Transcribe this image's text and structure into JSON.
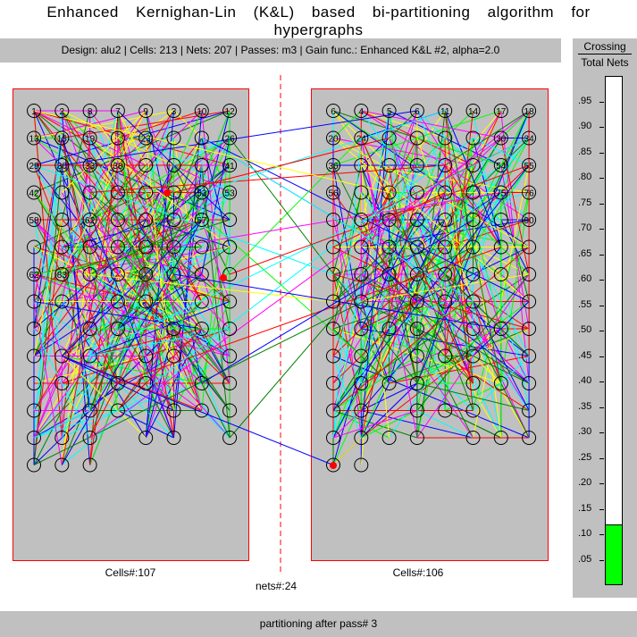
{
  "title": "Enhanced Kernighan-Lin (K&L) based bi-partitioning algorithm for hypergraphs",
  "info": {
    "text": "Design: alu2  |  Cells: 213  |  Nets: 207  |  Passes: m3  |  Gain func.: Enhanced K&L #2, alpha=2.0"
  },
  "gauge": {
    "header_top": "Crossing",
    "header_bottom": "Total Nets",
    "value": 0.115,
    "fill_color": "#00ff00",
    "ticks": [
      ".95",
      ".90",
      ".85",
      ".80",
      ".75",
      ".70",
      ".65",
      ".60",
      ".55",
      ".50",
      ".45",
      ".40",
      ".35",
      ".30",
      ".25",
      ".20",
      ".15",
      ".10",
      ".05"
    ]
  },
  "left_partition": {
    "label": "Cells#:107",
    "grid_labels": [
      "1",
      "2",
      "8",
      "7",
      "9",
      "3",
      "10",
      "12",
      "13",
      "15",
      "19",
      "",
      "23",
      "",
      "",
      "26",
      "29",
      "30",
      "33",
      "38",
      "",
      "",
      "",
      "41",
      "42",
      "",
      "",
      "",
      "",
      "",
      "53",
      "53",
      "58",
      "",
      "62",
      "",
      "",
      "",
      "57",
      "",
      "",
      "",
      "",
      "",
      "",
      "",
      "",
      "",
      "62",
      "83"
    ]
  },
  "right_partition": {
    "label": "Cells#:106",
    "grid_labels": [
      "6",
      "4",
      "5",
      "6",
      "11",
      "14",
      "17",
      "18",
      "20",
      "24",
      "",
      "",
      "",
      "",
      "30",
      "34",
      "36",
      "",
      "",
      "",
      "",
      "",
      "54",
      "55",
      "56",
      "",
      "",
      "",
      "",
      "",
      "75",
      "76",
      "",
      "",
      "",
      "",
      "",
      "",
      "",
      "90"
    ]
  },
  "cut_label": "nets#:24",
  "status": "partitioning after pass# 3",
  "colors": {
    "panel": "#c0c0c0",
    "border": "#ff0000",
    "nets": [
      "#ff0000",
      "#0000ff",
      "#00ff00",
      "#ffff00",
      "#ff00ff",
      "#00ffff",
      "#008000"
    ]
  }
}
